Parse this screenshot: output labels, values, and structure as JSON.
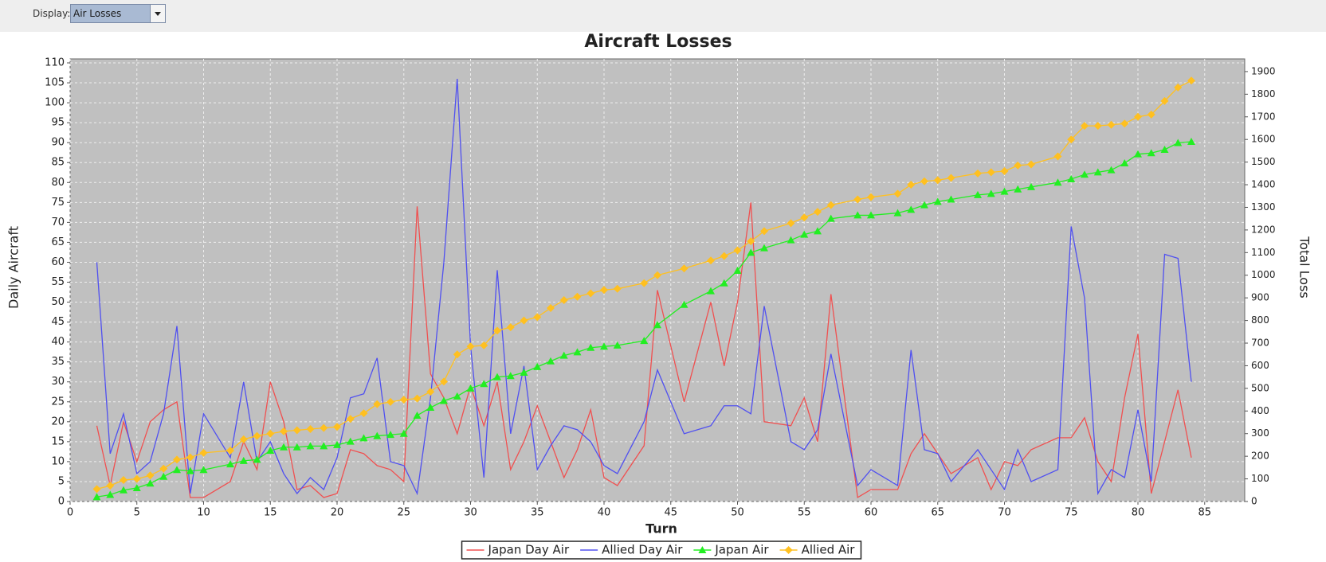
{
  "ui": {
    "display_label": "Display:",
    "display_value": "Air Losses"
  },
  "chart_data": {
    "type": "line",
    "title": "Aircraft Losses",
    "x_label": "Turn",
    "y_label": "Daily Aircraft",
    "y2_label": "Total Loss",
    "x": [
      2,
      3,
      4,
      5,
      6,
      7,
      8,
      9,
      10,
      12,
      13,
      14,
      15,
      16,
      17,
      18,
      19,
      20,
      21,
      22,
      23,
      24,
      25,
      26,
      27,
      28,
      29,
      30,
      31,
      32,
      33,
      34,
      35,
      36,
      37,
      38,
      39,
      40,
      41,
      43,
      44,
      46,
      48,
      49,
      50,
      51,
      52,
      54,
      55,
      56,
      57,
      59,
      60,
      62,
      63,
      64,
      65,
      66,
      68,
      69,
      70,
      71,
      72,
      74,
      75,
      76,
      77,
      78,
      79,
      80,
      81,
      82,
      83,
      84
    ],
    "series": [
      {
        "name": "Japan Day Air",
        "color": "#f05050",
        "marker": "none",
        "values": [
          19,
          4,
          20,
          10,
          20,
          23,
          25,
          1,
          1,
          5,
          15,
          8,
          30,
          20,
          3,
          4,
          1,
          2,
          13,
          12,
          9,
          8,
          5,
          74,
          32,
          26,
          17,
          29,
          19,
          30,
          8,
          15,
          24,
          15,
          6,
          13,
          23,
          6,
          4,
          14,
          53,
          25,
          50,
          34,
          50,
          75,
          20,
          19,
          26,
          15,
          52,
          1,
          3,
          3,
          12,
          17,
          12,
          7,
          11,
          3,
          10,
          9,
          13,
          16,
          16,
          21,
          10,
          5,
          26,
          42,
          2,
          15,
          28,
          11
        ]
      },
      {
        "name": "Allied Day Air",
        "color": "#5050f0",
        "marker": "none",
        "values": [
          60,
          12,
          22,
          7,
          10,
          22,
          44,
          2,
          22,
          11,
          30,
          10,
          15,
          7,
          2,
          6,
          3,
          11,
          26,
          27,
          36,
          10,
          9,
          2,
          26,
          60,
          106,
          39,
          6,
          58,
          17,
          34,
          8,
          14,
          19,
          18,
          15,
          9,
          7,
          20,
          33,
          17,
          19,
          24,
          24,
          22,
          49,
          15,
          13,
          18,
          37,
          4,
          8,
          4,
          38,
          13,
          12,
          5,
          13,
          8,
          3,
          13,
          5,
          8,
          69,
          51,
          2,
          8,
          6,
          23,
          5,
          62,
          61,
          30
        ]
      },
      {
        "name": "Japan Air",
        "color": "#22ee22",
        "marker": "triangle",
        "axis": "y2",
        "values": [
          20,
          30,
          50,
          60,
          80,
          110,
          140,
          135,
          140,
          165,
          180,
          185,
          225,
          240,
          240,
          245,
          245,
          250,
          265,
          280,
          290,
          295,
          300,
          380,
          415,
          445,
          465,
          500,
          520,
          550,
          555,
          570,
          595,
          620,
          645,
          660,
          680,
          685,
          690,
          710,
          780,
          870,
          930,
          965,
          1020,
          1100,
          1120,
          1155,
          1180,
          1195,
          1250,
          1265,
          1265,
          1275,
          1290,
          1310,
          1325,
          1335,
          1355,
          1360,
          1370,
          1380,
          1390,
          1410,
          1425,
          1445,
          1455,
          1465,
          1495,
          1535,
          1540,
          1555,
          1585,
          1590
        ]
      },
      {
        "name": "Allied Air",
        "color": "#ffc020",
        "marker": "diamond",
        "axis": "y2",
        "values": [
          55,
          70,
          95,
          100,
          115,
          145,
          185,
          195,
          215,
          225,
          275,
          290,
          300,
          310,
          315,
          320,
          325,
          330,
          365,
          390,
          430,
          440,
          450,
          455,
          485,
          530,
          650,
          685,
          690,
          755,
          770,
          800,
          815,
          855,
          890,
          905,
          920,
          935,
          940,
          965,
          1000,
          1030,
          1065,
          1085,
          1110,
          1150,
          1195,
          1230,
          1255,
          1280,
          1310,
          1335,
          1345,
          1360,
          1400,
          1415,
          1420,
          1430,
          1450,
          1455,
          1460,
          1485,
          1490,
          1525,
          1600,
          1660,
          1660,
          1665,
          1670,
          1700,
          1710,
          1770,
          1830,
          1860
        ]
      }
    ],
    "xlim": [
      0,
      88
    ],
    "ylim": [
      0,
      111
    ],
    "y2lim": [
      0,
      1956
    ],
    "xticks": [
      0,
      5,
      10,
      15,
      20,
      25,
      30,
      35,
      40,
      45,
      50,
      55,
      60,
      65,
      70,
      75,
      80,
      85
    ],
    "yticks": [
      0,
      5,
      10,
      15,
      20,
      25,
      30,
      35,
      40,
      45,
      50,
      55,
      60,
      65,
      70,
      75,
      80,
      85,
      90,
      95,
      100,
      105,
      110
    ],
    "y2ticks": [
      0,
      100,
      200,
      300,
      400,
      500,
      600,
      700,
      800,
      900,
      1000,
      1100,
      1200,
      1300,
      1400,
      1500,
      1600,
      1700,
      1800,
      1900
    ],
    "grid": true,
    "legend": "bottom"
  }
}
